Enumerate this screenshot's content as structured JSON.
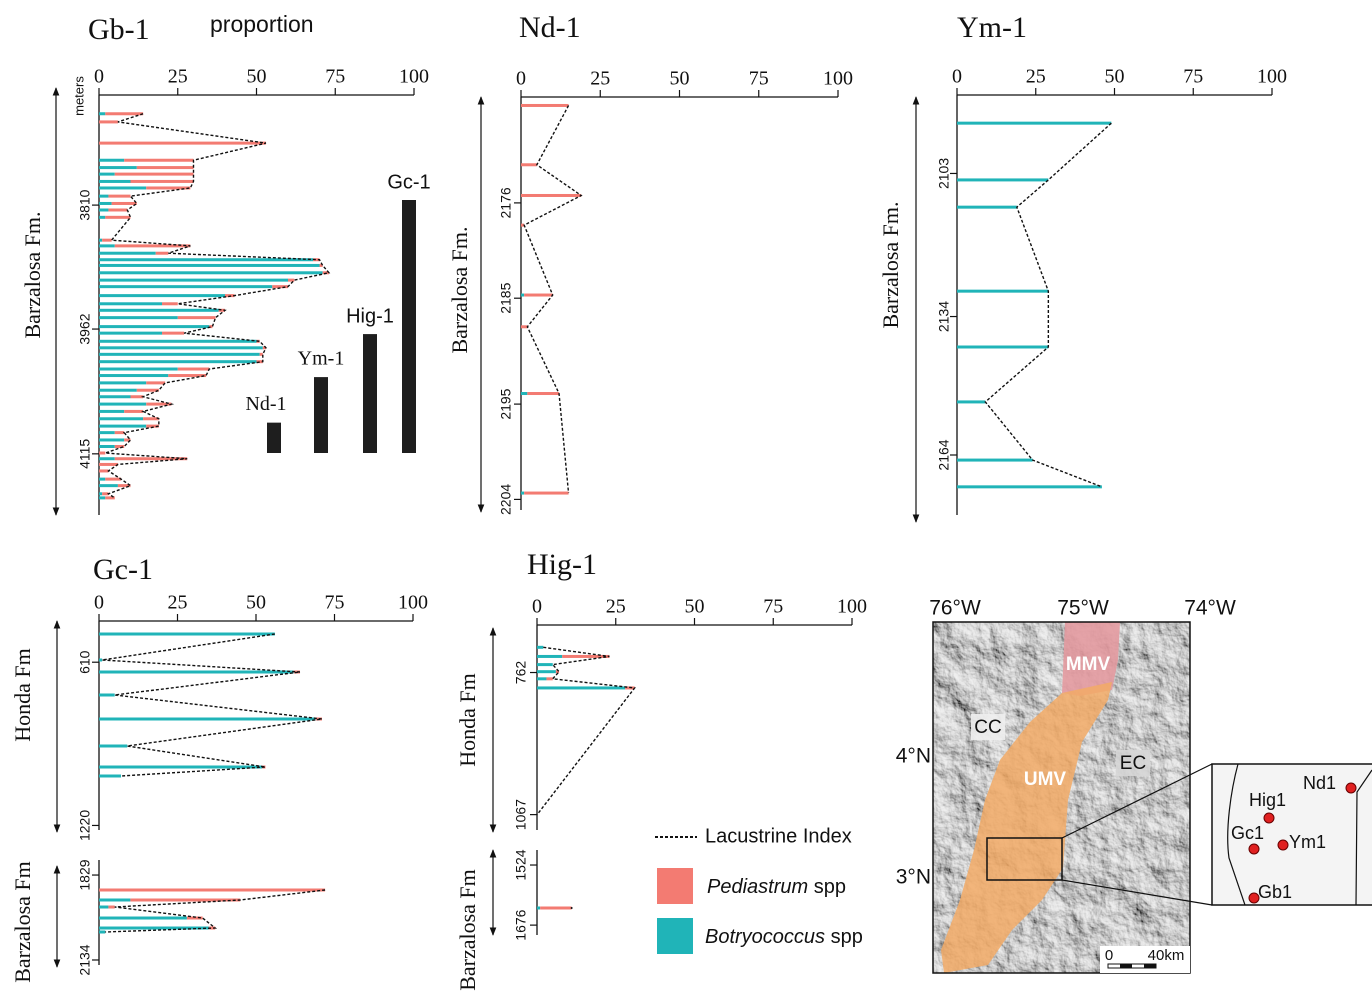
{
  "chart_data": [
    {
      "type": "profile",
      "title": "Gb-1",
      "formation": "Barzalosa Fm.",
      "x_label": "proportion",
      "y_label": "meters",
      "xlim": [
        0,
        100
      ],
      "xticks": [
        0,
        25,
        50,
        75,
        100
      ],
      "ylim": [
        3675,
        4190
      ],
      "yticks": [
        3810,
        3962,
        4115
      ],
      "depths": [
        3698,
        3708,
        3734,
        3755,
        3764,
        3772,
        3781,
        3789,
        3799,
        3808,
        3816,
        3825,
        3853,
        3860,
        3869,
        3877,
        3884,
        3893,
        3902,
        3910,
        3921,
        3931,
        3939,
        3948,
        3959,
        3967,
        3977,
        3985,
        3993,
        4002,
        4011,
        4019,
        4028,
        4037,
        4045,
        4054,
        4063,
        4072,
        4081,
        4089,
        4098,
        4106,
        4114,
        4121,
        4128,
        4136,
        4146,
        4154,
        4164,
        4169
      ],
      "botryococcus": [
        2,
        0,
        0,
        8,
        12,
        5,
        10,
        15,
        3,
        4,
        3,
        2,
        1,
        5,
        18,
        68,
        70,
        71,
        60,
        55,
        40,
        20,
        38,
        25,
        35,
        20,
        50,
        52,
        51,
        50,
        25,
        22,
        15,
        12,
        10,
        15,
        8,
        14,
        15,
        5,
        8,
        5,
        0,
        5,
        0,
        0,
        2,
        6,
        1,
        2
      ],
      "pediastrum": [
        12,
        6,
        53,
        22,
        18,
        25,
        20,
        14,
        7,
        8,
        6,
        8,
        3,
        24,
        4,
        2,
        1,
        2,
        2,
        5,
        3,
        5,
        2,
        12,
        1,
        7,
        1,
        1,
        1,
        2,
        10,
        12,
        6,
        7,
        4,
        8,
        6,
        5,
        4,
        3,
        2,
        3,
        2,
        23,
        6,
        3,
        5,
        4,
        2,
        3
      ],
      "lacustrine_index": [
        14,
        6,
        53,
        30,
        30,
        30,
        30,
        29,
        10,
        12,
        9,
        10,
        4,
        29,
        22,
        70,
        71,
        73,
        62,
        60,
        43,
        25,
        40,
        37,
        36,
        27,
        51,
        53,
        52,
        52,
        35,
        34,
        21,
        19,
        14,
        23,
        14,
        19,
        19,
        8,
        10,
        8,
        2,
        28,
        6,
        3,
        7,
        10,
        3,
        5
      ]
    },
    {
      "type": "profile",
      "title": "Nd-1",
      "formation": "Barzalosa Fm.",
      "xlim": [
        0,
        100
      ],
      "xticks": [
        0,
        25,
        50,
        75,
        100
      ],
      "ylim": [
        2166,
        2205
      ],
      "yticks": [
        2176,
        2185,
        2195,
        2204
      ],
      "depths": [
        2166.8,
        2172.4,
        2175.3,
        2178.1,
        2184.7,
        2187.7,
        2194,
        2203.4
      ],
      "botryococcus": [
        0,
        0,
        0,
        0,
        1,
        0,
        2,
        1
      ],
      "pediastrum": [
        15,
        5,
        19,
        1,
        9,
        2,
        10,
        14
      ],
      "lacustrine_index": [
        15,
        5,
        19,
        1,
        10,
        2,
        12,
        15
      ]
    },
    {
      "type": "profile",
      "title": "Ym-1",
      "formation": "Barzalosa Fm.",
      "xlim": [
        0,
        100
      ],
      "xticks": [
        0,
        25,
        50,
        75,
        100
      ],
      "ylim": [
        2086,
        2177
      ],
      "yticks": [
        2103,
        2134,
        2164
      ],
      "depths": [
        2092.1,
        2104.4,
        2110.3,
        2128.5,
        2140.6,
        2152.5,
        2165.1,
        2170.9
      ],
      "botryococcus": [
        49,
        29,
        19,
        29,
        29,
        9,
        24,
        46
      ],
      "pediastrum": [
        0,
        0,
        0,
        0,
        0,
        0,
        0,
        0
      ],
      "lacustrine_index": [
        49,
        29,
        19,
        29,
        29,
        9,
        24,
        46
      ]
    },
    {
      "type": "profile",
      "title": "Gc-1",
      "formation": "Honda Fm",
      "xlim": [
        0,
        100
      ],
      "xticks": [
        0,
        25,
        50,
        75,
        100
      ],
      "ylim": [
        456,
        1237
      ],
      "yticks": [
        610,
        1220
      ],
      "depths": [
        504.6,
        601.7,
        646.6,
        732.5,
        822.2,
        923.1,
        1001.6,
        1035.2
      ],
      "botryococcus": [
        56,
        1,
        62,
        5,
        69,
        9,
        52,
        7
      ],
      "pediastrum": [
        0,
        0,
        2,
        0,
        2,
        0,
        1,
        0
      ],
      "lacustrine_index": [
        56,
        1,
        64,
        5,
        71,
        9,
        53,
        7
      ]
    },
    {
      "type": "profile",
      "formation": "Barzalosa Fm",
      "xlim": [
        0,
        100
      ],
      "ylim": [
        1775,
        2152
      ],
      "yticks": [
        1829,
        2134
      ],
      "depths": [
        1882.7,
        1918.6,
        1943.8,
        1983.3,
        2019.2,
        2033.5
      ],
      "botryococcus": [
        0,
        10,
        3,
        28,
        35,
        2
      ],
      "pediastrum": [
        72,
        35,
        2,
        5,
        2,
        0
      ],
      "lacustrine_index": [
        72,
        45,
        5,
        33,
        37,
        2
      ]
    },
    {
      "type": "profile",
      "title": "Hig-1",
      "formation": "Honda Fm",
      "xlim": [
        0,
        100
      ],
      "xticks": [
        0,
        25,
        50,
        75,
        100
      ],
      "ylim": [
        660,
        1100
      ],
      "yticks": [
        762,
        1067
      ],
      "depths": [
        707.9,
        727.5,
        745,
        760.2,
        775.5,
        795.1,
        1067.4
      ],
      "botryococcus": [
        2,
        8,
        5,
        6,
        3,
        28,
        0
      ],
      "pediastrum": [
        0,
        15,
        0,
        1,
        2,
        3,
        0
      ],
      "lacustrine_index": [
        2,
        23,
        5,
        7,
        5,
        31,
        0
      ]
    },
    {
      "type": "profile",
      "formation": "Barzalosa Fm",
      "xlim": [
        0,
        100
      ],
      "ylim": [
        1486,
        1701
      ],
      "yticks": [
        1524,
        1676
      ],
      "depths": [
        1632.7
      ],
      "botryococcus": [
        1
      ],
      "pediastrum": [
        10
      ],
      "lacustrine_index": [
        11
      ]
    },
    {
      "type": "bar",
      "categories": [
        "Nd-1",
        "Ym-1",
        "Hig-1",
        "Gc-1"
      ],
      "values": [
        12,
        30,
        47,
        100
      ],
      "color": "#1e1e1e"
    }
  ],
  "legend": {
    "index_label": "Lacustrine Index",
    "taxa": [
      {
        "genus": "Pediastrum",
        "rest": "spp",
        "color": "#f37b72"
      },
      {
        "genus": "Botryococcus",
        "rest": "spp",
        "color": "#20b4b8"
      }
    ]
  },
  "map": {
    "longitudes": [
      "76°W",
      "75°W",
      "74°W"
    ],
    "latitudes": [
      "4°N",
      "3°N"
    ],
    "regions": [
      "MMV",
      "UMV",
      "CC",
      "EC"
    ],
    "scale": [
      "0",
      "40km"
    ],
    "sites": [
      "Nd1",
      "Hig1",
      "Gc1",
      "Ym1",
      "Gb1"
    ]
  }
}
